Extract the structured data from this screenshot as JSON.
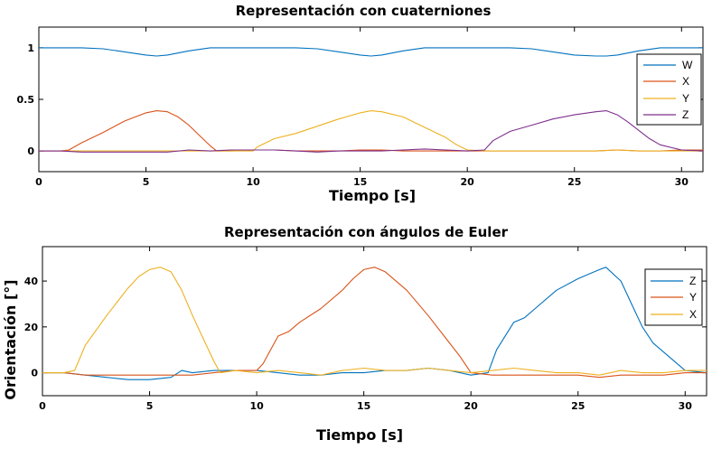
{
  "chart_data": [
    {
      "type": "line",
      "title": "Representación con cuaterniones",
      "xlabel": "Tiempo  [s]",
      "ylabel": "",
      "xlim": [
        0,
        31
      ],
      "ylim": [
        -0.2,
        1.2
      ],
      "xticks": [
        0,
        5,
        10,
        15,
        20,
        25,
        30
      ],
      "yticks": [
        0,
        0.5,
        1
      ],
      "ytick_labels": [
        "0",
        "0.5",
        "1"
      ],
      "legend_position": "top-right",
      "grid": false,
      "series": [
        {
          "name": "W",
          "color": "#0072BD",
          "x": [
            0,
            1,
            2,
            3,
            4,
            5,
            5.5,
            6,
            7,
            8,
            9,
            10,
            12,
            13,
            14,
            15,
            15.5,
            16,
            17,
            18,
            19,
            20,
            22,
            23,
            24,
            25,
            26,
            26.5,
            27,
            28,
            29,
            30,
            31
          ],
          "y": [
            1,
            1,
            1,
            0.99,
            0.96,
            0.93,
            0.92,
            0.93,
            0.97,
            1,
            1,
            1,
            1,
            0.99,
            0.96,
            0.93,
            0.92,
            0.93,
            0.97,
            1,
            1,
            1,
            1,
            0.99,
            0.96,
            0.93,
            0.92,
            0.92,
            0.93,
            0.97,
            1,
            1,
            1
          ]
        },
        {
          "name": "X",
          "color": "#D95319",
          "x": [
            0,
            1,
            1.4,
            2,
            3,
            4,
            5,
            5.5,
            6,
            6.5,
            7,
            7.5,
            8,
            8.3,
            9,
            10,
            11,
            12,
            13,
            14,
            15,
            16,
            17,
            18,
            19,
            20,
            21,
            22,
            23,
            24,
            25,
            26,
            27,
            28,
            29,
            30,
            31
          ],
          "y": [
            0,
            0,
            0.01,
            0.08,
            0.18,
            0.29,
            0.37,
            0.39,
            0.38,
            0.33,
            0.25,
            0.15,
            0.05,
            0,
            0,
            0.01,
            0.01,
            0,
            0,
            0,
            0.01,
            0.01,
            0,
            0,
            0,
            0,
            0,
            0,
            0,
            0,
            0,
            0,
            0.01,
            0,
            0,
            0.01,
            0.01
          ]
        },
        {
          "name": "Y",
          "color": "#EDB120",
          "x": [
            0,
            1,
            2,
            3,
            4,
            5,
            6,
            7,
            8,
            9,
            10,
            10.2,
            11,
            12,
            13,
            14,
            15,
            15.5,
            16,
            17,
            18,
            19,
            19.5,
            20,
            21,
            22,
            23,
            24,
            25,
            26,
            27,
            28,
            29,
            30,
            31
          ],
          "y": [
            0,
            0,
            0,
            0,
            0,
            0,
            0,
            0,
            0,
            0,
            0,
            0.04,
            0.12,
            0.17,
            0.24,
            0.31,
            0.37,
            0.39,
            0.38,
            0.33,
            0.23,
            0.13,
            0.06,
            0.01,
            0,
            0,
            0,
            0,
            0,
            0,
            0.01,
            0,
            0,
            0,
            0
          ]
        },
        {
          "name": "Z",
          "color": "#7E2F8E",
          "x": [
            0,
            1,
            2,
            3,
            4,
            5,
            6,
            7,
            8,
            9,
            10,
            11,
            12,
            13,
            14,
            15,
            16,
            17,
            18,
            19,
            20,
            20.8,
            21.2,
            22,
            23,
            24,
            25,
            26,
            26.5,
            27,
            27.5,
            28,
            28.5,
            29,
            30,
            31
          ],
          "y": [
            0,
            0,
            -0.01,
            -0.01,
            -0.01,
            -0.01,
            -0.01,
            0.01,
            0,
            0.01,
            0.01,
            0.01,
            0,
            -0.01,
            0,
            0,
            0,
            0.01,
            0.02,
            0.01,
            0,
            0.01,
            0.1,
            0.19,
            0.25,
            0.31,
            0.35,
            0.38,
            0.39,
            0.35,
            0.28,
            0.2,
            0.12,
            0.06,
            0.01,
            0
          ]
        }
      ]
    },
    {
      "type": "line",
      "title": "Representación con ángulos de Euler",
      "xlabel": "Tiempo  [s]",
      "ylabel": "Orientación  [°]",
      "xlim": [
        0,
        31
      ],
      "ylim": [
        -10,
        55
      ],
      "xticks": [
        0,
        5,
        10,
        15,
        20,
        25,
        30
      ],
      "yticks": [
        0,
        20,
        40
      ],
      "ytick_labels": [
        "0",
        "20",
        "40"
      ],
      "legend_position": "top-right",
      "grid": false,
      "series": [
        {
          "name": "Z",
          "color": "#0072BD",
          "x": [
            0,
            1,
            2,
            3,
            4,
            5,
            6,
            6.5,
            7,
            8,
            9,
            10,
            11,
            12,
            13,
            14,
            15,
            16,
            17,
            18,
            19,
            20,
            20.8,
            21.2,
            22,
            22.5,
            23,
            24,
            25,
            26,
            26.3,
            27,
            27.5,
            28,
            28.5,
            29,
            29.5,
            30,
            31
          ],
          "y": [
            0,
            0,
            -1,
            -2,
            -3,
            -3,
            -2,
            1,
            0,
            1,
            1,
            1,
            0,
            -1,
            -1,
            0,
            0,
            1,
            1,
            2,
            1,
            -1,
            0,
            10,
            22,
            24,
            28,
            36,
            41,
            45,
            46,
            40,
            30,
            20,
            13,
            9,
            5,
            1,
            0
          ]
        },
        {
          "name": "Y",
          "color": "#D95319",
          "x": [
            0,
            1,
            2,
            3,
            4,
            5,
            6,
            7,
            8,
            9,
            10,
            10.3,
            11,
            11.5,
            12,
            13,
            14,
            14.5,
            15,
            15.5,
            16,
            17,
            18,
            19,
            19.5,
            20,
            21,
            22,
            23,
            24,
            25,
            26,
            27,
            28,
            29,
            30,
            31
          ],
          "y": [
            0,
            0,
            -1,
            -1,
            -1,
            -1,
            -1,
            -1,
            0,
            1,
            1,
            4,
            16,
            18,
            22,
            28,
            36,
            41,
            45,
            46,
            44,
            36,
            25,
            13,
            7,
            0,
            -1,
            -1,
            -1,
            -1,
            -1,
            -2,
            -1,
            -1,
            -1,
            0,
            0
          ]
        },
        {
          "name": "X",
          "color": "#EDB120",
          "x": [
            0,
            1,
            1.5,
            2,
            3,
            3.5,
            4,
            4.5,
            5,
            5.5,
            6,
            6.5,
            7,
            7.5,
            8,
            8.3,
            9,
            10,
            11,
            12,
            13,
            14,
            15,
            16,
            17,
            18,
            19,
            20,
            21,
            22,
            23,
            24,
            25,
            26,
            27,
            28,
            29,
            30,
            31
          ],
          "y": [
            0,
            0,
            1,
            12,
            25,
            31,
            37,
            42,
            45,
            46,
            44,
            36,
            25,
            15,
            5,
            0,
            1,
            0,
            1,
            0,
            -1,
            1,
            2,
            1,
            1,
            2,
            1,
            0,
            1,
            2,
            1,
            0,
            0,
            -1,
            1,
            0,
            0,
            1,
            1
          ]
        }
      ]
    }
  ]
}
